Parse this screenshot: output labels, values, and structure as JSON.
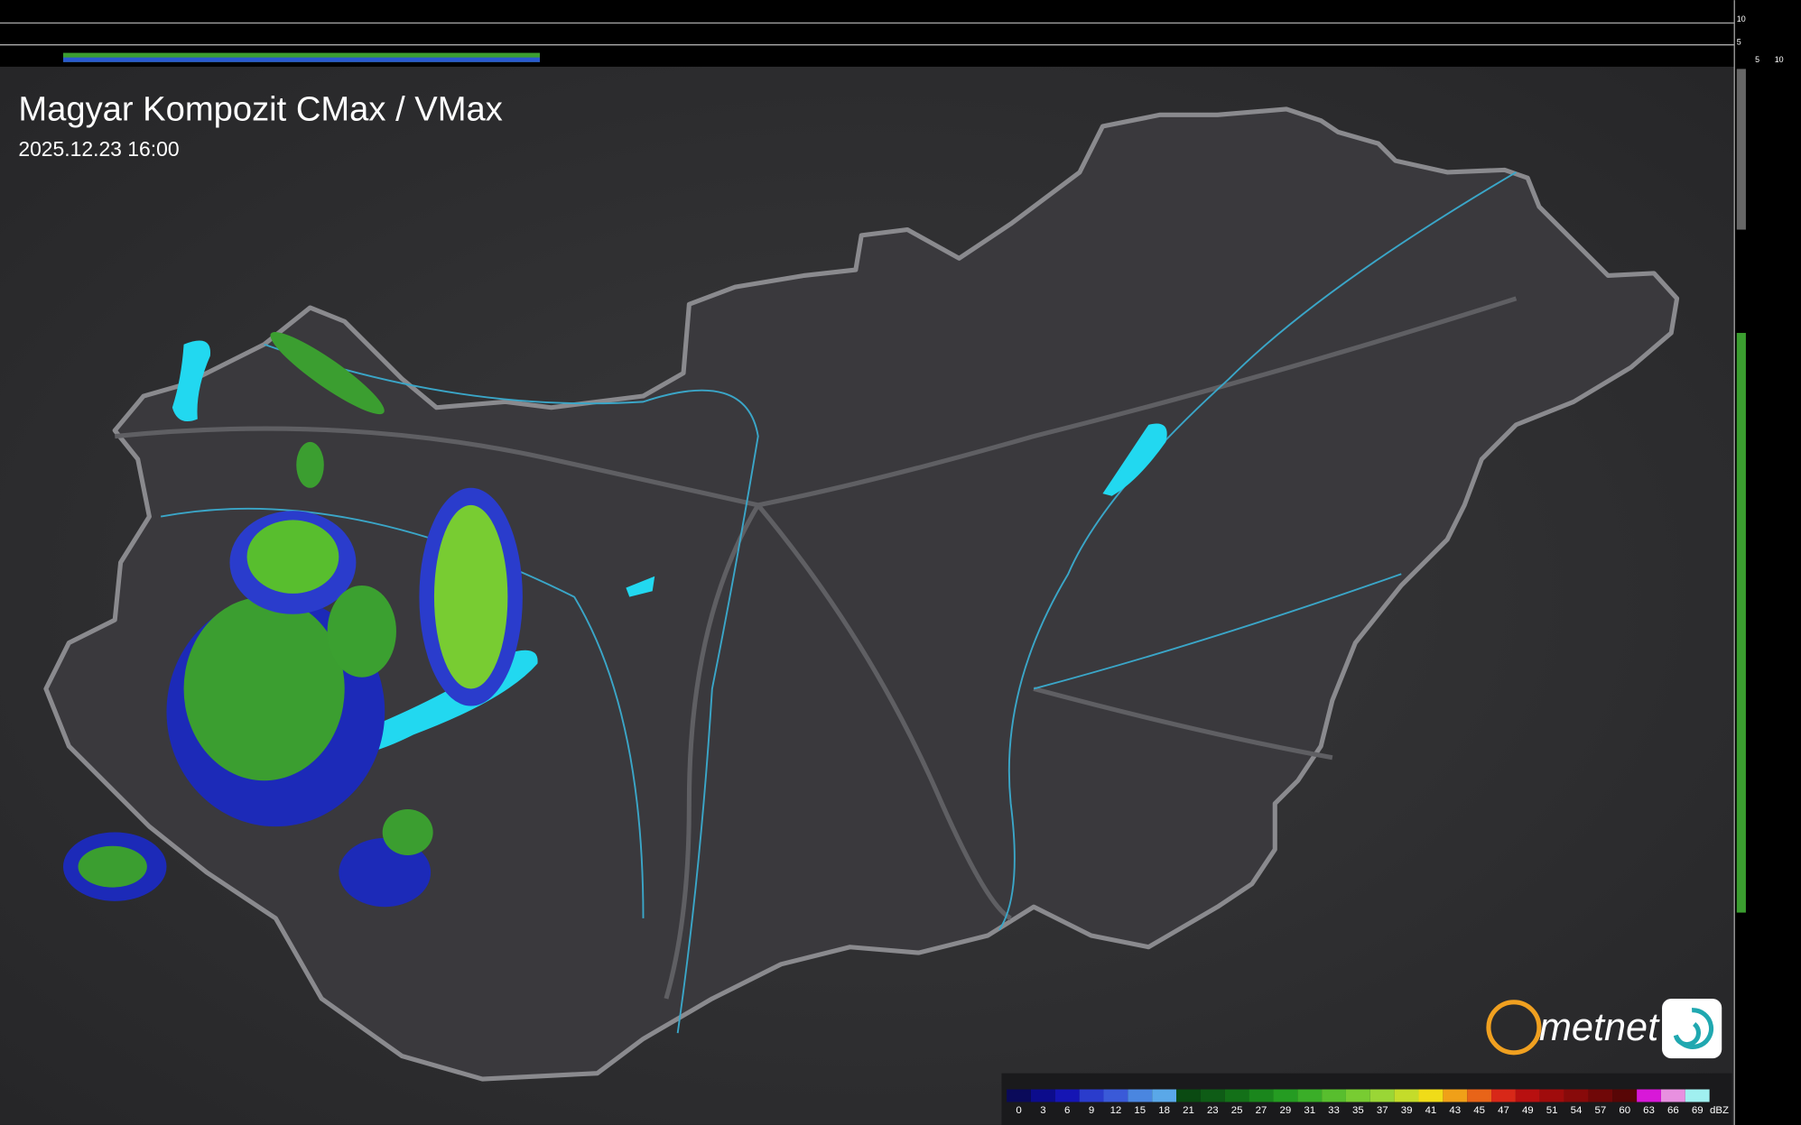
{
  "header": {
    "title": "Magyar Kompozit CMax / VMax",
    "timestamp": "2025.12.23 16:00"
  },
  "profile_axis": {
    "right_ticks": [
      "10",
      "5"
    ],
    "bottom_ticks": [
      "5",
      "10"
    ]
  },
  "logo": {
    "text": "metnet"
  },
  "legend": {
    "unit": "dBZ",
    "items": [
      {
        "label": "0",
        "color": "#0a0a5a"
      },
      {
        "label": "3",
        "color": "#0c0c8c"
      },
      {
        "label": "6",
        "color": "#1515b4"
      },
      {
        "label": "9",
        "color": "#2a3ccc"
      },
      {
        "label": "12",
        "color": "#3a5ad8"
      },
      {
        "label": "15",
        "color": "#4a86e0"
      },
      {
        "label": "18",
        "color": "#5aa8e8"
      },
      {
        "label": "21",
        "color": "#0a4a12"
      },
      {
        "label": "23",
        "color": "#0e5c16"
      },
      {
        "label": "25",
        "color": "#137018"
      },
      {
        "label": "27",
        "color": "#1a861c"
      },
      {
        "label": "29",
        "color": "#259c22"
      },
      {
        "label": "31",
        "color": "#3aae28"
      },
      {
        "label": "33",
        "color": "#58be2e"
      },
      {
        "label": "35",
        "color": "#78cc32"
      },
      {
        "label": "37",
        "color": "#9ad636"
      },
      {
        "label": "39",
        "color": "#c4dc2a"
      },
      {
        "label": "41",
        "color": "#f0dc18"
      },
      {
        "label": "43",
        "color": "#f0a018"
      },
      {
        "label": "45",
        "color": "#e86418"
      },
      {
        "label": "47",
        "color": "#d82818"
      },
      {
        "label": "49",
        "color": "#b81010"
      },
      {
        "label": "51",
        "color": "#a00c0c"
      },
      {
        "label": "54",
        "color": "#880a0a"
      },
      {
        "label": "57",
        "color": "#700808"
      },
      {
        "label": "60",
        "color": "#580606"
      },
      {
        "label": "63",
        "color": "#d818d8"
      },
      {
        "label": "66",
        "color": "#e890e0"
      },
      {
        "label": "69",
        "color": "#a0f0f0"
      }
    ]
  }
}
